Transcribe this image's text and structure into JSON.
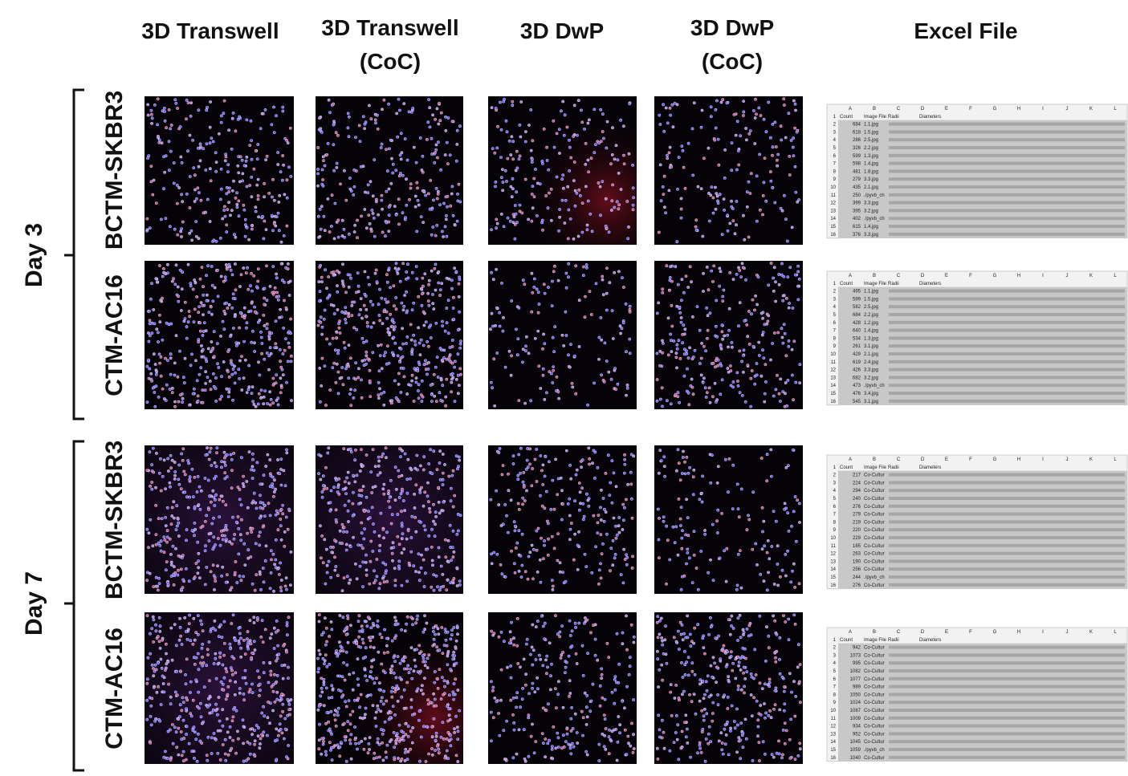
{
  "headers": [
    {
      "lines": [
        "3D Transwell"
      ]
    },
    {
      "lines": [
        "3D Transwell",
        "(CoC)"
      ]
    },
    {
      "lines": [
        "3D DwP"
      ]
    },
    {
      "lines": [
        "3D DwP",
        "(CoC)"
      ]
    },
    {
      "lines": [
        "Excel File"
      ]
    }
  ],
  "days": [
    {
      "label": "Day 3",
      "rows": [
        "BCTM-SKBR3",
        "CTM-AC16"
      ]
    },
    {
      "label": "Day 7",
      "rows": [
        "BCTM-SKBR3",
        "CTM-AC16"
      ]
    }
  ],
  "sheet_columns": [
    "A",
    "B",
    "C",
    "D",
    "E",
    "F",
    "G",
    "H",
    "I",
    "J",
    "K",
    "L"
  ],
  "sheet_row_numbers": [
    1,
    2,
    3,
    4,
    5,
    6,
    7,
    8,
    9,
    10,
    11,
    12,
    13,
    14,
    15,
    16
  ],
  "sheet_header": [
    "Count",
    "Image File",
    "Radii",
    "Diameters"
  ],
  "sheets": [
    {
      "counts": [
        684,
        618,
        286,
        326,
        599,
        598,
        481,
        279,
        435,
        250,
        399,
        395,
        402,
        615,
        376
      ],
      "files": [
        "1.1.jpg",
        "1.5.jpg",
        "2.5.jpg",
        "2.2.jpg",
        "1.3.jpg",
        "1.4.jpg",
        "1.8.jpg",
        "3.3.jpg",
        "2.1.jpg",
        "./pyvb_ch",
        "3.3.jpg",
        "3.2.jpg",
        "./pyvb_ch",
        "1.4.jpg",
        "3.3.jpg"
      ]
    },
    {
      "counts": [
        495,
        599,
        582,
        684,
        428,
        640,
        534,
        261,
        429,
        619,
        426,
        682,
        473,
        476,
        545
      ],
      "files": [
        "1.1.jpg",
        "1.5.jpg",
        "2.5.jpg",
        "2.2.jpg",
        "1.2.jpg",
        "1.4.jpg",
        "1.3.jpg",
        "3.1.jpg",
        "2.1.jpg",
        "2.4.jpg",
        "3.3.jpg",
        "3.2.jpg",
        "./pyvb_ch",
        "3.4.jpg",
        "3.1.jpg"
      ]
    },
    {
      "counts": [
        217,
        224,
        294,
        240,
        276,
        279,
        219,
        220,
        229,
        185,
        263,
        190,
        256,
        244,
        276
      ],
      "files": [
        "Co-Cultur",
        "Co-Cultur",
        "Co-Cultur",
        "Co-Cultur",
        "Co-Cultur",
        "Co-Cultur",
        "Co-Cultur",
        "Co-Cultur",
        "Co-Cultur",
        "Co-Cultur",
        "Co-Cultur",
        "Co-Cultur",
        "Co-Cultur",
        "./pyvb_ch",
        "Co-Cultur"
      ]
    },
    {
      "counts": [
        942,
        1073,
        995,
        1082,
        1077,
        989,
        1050,
        1024,
        1087,
        1009,
        934,
        952,
        1045,
        1059,
        1040
      ],
      "files": [
        "Co-Cultur",
        "Co-Cultur",
        "Co-Cultur",
        "Co-Cultur",
        "Co-Cultur",
        "Co-Cultur",
        "Co-Cultur",
        "Co-Cultur",
        "Co-Cultur",
        "Co-Cultur",
        "Co-Cultur",
        "Co-Cultur",
        "Co-Cultur",
        "./pyvb_ch",
        "Co-Cultur"
      ]
    }
  ]
}
